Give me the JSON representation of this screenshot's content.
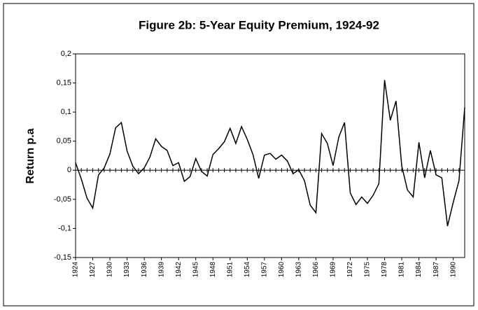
{
  "chart_data": {
    "type": "line",
    "title": "Figure 2b: 5-Year Equity Premium, 1924-92",
    "y_label": "Return p.a",
    "x": [
      1924,
      1925,
      1926,
      1927,
      1928,
      1929,
      1930,
      1931,
      1932,
      1933,
      1934,
      1935,
      1936,
      1937,
      1938,
      1939,
      1940,
      1941,
      1942,
      1943,
      1944,
      1945,
      1946,
      1947,
      1948,
      1949,
      1950,
      1951,
      1952,
      1953,
      1954,
      1955,
      1956,
      1957,
      1958,
      1959,
      1960,
      1961,
      1962,
      1963,
      1964,
      1965,
      1966,
      1967,
      1968,
      1969,
      1970,
      1971,
      1972,
      1973,
      1974,
      1975,
      1976,
      1977,
      1978,
      1979,
      1980,
      1981,
      1982,
      1983,
      1984,
      1985,
      1986,
      1987,
      1988,
      1989,
      1990,
      1991,
      1992
    ],
    "series": [
      {
        "color": "#000000",
        "values": [
          0.013,
          -0.015,
          -0.048,
          -0.065,
          -0.008,
          0.004,
          0.028,
          0.073,
          0.082,
          0.033,
          0.007,
          -0.006,
          0.004,
          0.023,
          0.054,
          0.041,
          0.034,
          0.008,
          0.013,
          -0.019,
          -0.011,
          0.02,
          -0.002,
          -0.01,
          0.027,
          0.037,
          0.049,
          0.072,
          0.046,
          0.075,
          0.053,
          0.027,
          -0.014,
          0.026,
          0.029,
          0.019,
          0.026,
          0.016,
          -0.006,
          0.001,
          -0.018,
          -0.06,
          -0.073,
          0.063,
          0.046,
          0.008,
          0.057,
          0.082,
          -0.039,
          -0.059,
          -0.046,
          -0.057,
          -0.043,
          -0.023,
          0.155,
          0.086,
          0.119,
          0.007,
          -0.034,
          -0.046,
          0.048,
          -0.013,
          0.034,
          -0.008,
          -0.013,
          -0.096,
          -0.055,
          -0.018,
          0.108
        ]
      }
    ],
    "xlim": [
      1924,
      1992
    ],
    "xticks": [
      1924,
      1927,
      1930,
      1933,
      1936,
      1939,
      1942,
      1945,
      1948,
      1951,
      1954,
      1957,
      1960,
      1963,
      1966,
      1969,
      1972,
      1975,
      1978,
      1981,
      1984,
      1987,
      1990
    ],
    "ylim": [
      -0.15,
      0.2
    ],
    "yticks": [
      {
        "value": -0.15,
        "label": "-0,15"
      },
      {
        "value": -0.1,
        "label": "-0,1"
      },
      {
        "value": -0.05,
        "label": "-0,05"
      },
      0,
      {
        "value": 0.05,
        "label": "0,05"
      },
      {
        "value": 0.1,
        "label": "0,1"
      },
      {
        "value": 0.15,
        "label": "0,15"
      },
      {
        "value": 0.2,
        "label": "0,2"
      }
    ],
    "grid": false
  }
}
